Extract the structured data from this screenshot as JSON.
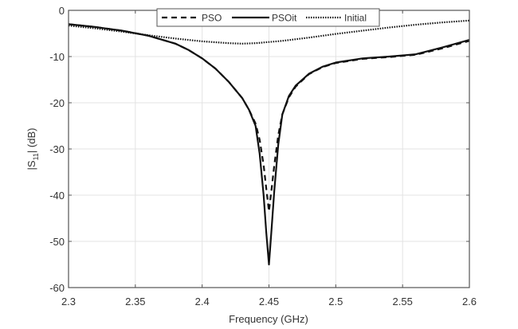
{
  "chart_data": {
    "type": "line",
    "title": "",
    "xlabel": "Frequency (GHz)",
    "ylabel": "|S11| (dB)",
    "ylabel_main": "|S",
    "ylabel_sub": "11",
    "ylabel_tail": "| (dB)",
    "xlim": [
      2.3,
      2.6
    ],
    "ylim": [
      -60,
      0
    ],
    "xticks": [
      2.3,
      2.35,
      2.4,
      2.45,
      2.5,
      2.55,
      2.6
    ],
    "xtick_labels": [
      "2.3",
      "2.35",
      "2.4",
      "2.45",
      "2.5",
      "2.55",
      "2.6"
    ],
    "yticks": [
      0,
      -10,
      -20,
      -30,
      -40,
      -50,
      -60
    ],
    "ytick_labels": [
      "0",
      "-10",
      "-20",
      "-30",
      "-40",
      "-50",
      "-60"
    ],
    "grid": true,
    "legend_position": "top-center",
    "series": [
      {
        "name": "PSO",
        "style": "dashed",
        "x": [
          2.3,
          2.32,
          2.34,
          2.36,
          2.38,
          2.39,
          2.4,
          2.41,
          2.42,
          2.43,
          2.435,
          2.44,
          2.443,
          2.446,
          2.448,
          2.45,
          2.452,
          2.454,
          2.457,
          2.46,
          2.465,
          2.47,
          2.48,
          2.49,
          2.5,
          2.52,
          2.54,
          2.56,
          2.58,
          2.6
        ],
        "values": [
          -3.0,
          -3.6,
          -4.4,
          -5.5,
          -7.2,
          -8.6,
          -10.4,
          -12.6,
          -15.5,
          -19.0,
          -21.5,
          -24.5,
          -28.0,
          -33.5,
          -38.5,
          -43.5,
          -38.5,
          -33.5,
          -27.0,
          -22.5,
          -18.8,
          -16.5,
          -13.8,
          -12.3,
          -11.4,
          -10.5,
          -10.1,
          -9.6,
          -8.2,
          -6.6
        ]
      },
      {
        "name": "PSOit",
        "style": "solid",
        "x": [
          2.3,
          2.32,
          2.34,
          2.36,
          2.38,
          2.39,
          2.4,
          2.41,
          2.42,
          2.43,
          2.435,
          2.44,
          2.443,
          2.446,
          2.448,
          2.45,
          2.452,
          2.454,
          2.457,
          2.46,
          2.465,
          2.47,
          2.48,
          2.49,
          2.5,
          2.52,
          2.54,
          2.56,
          2.58,
          2.6
        ],
        "values": [
          -3.0,
          -3.6,
          -4.4,
          -5.5,
          -7.2,
          -8.6,
          -10.4,
          -12.6,
          -15.5,
          -19.0,
          -21.5,
          -25.0,
          -31.0,
          -40.0,
          -48.0,
          -55.0,
          -47.0,
          -39.0,
          -29.0,
          -22.5,
          -18.5,
          -16.3,
          -13.7,
          -12.2,
          -11.3,
          -10.4,
          -10.0,
          -9.5,
          -8.0,
          -6.4
        ]
      },
      {
        "name": "Initial",
        "style": "dotted",
        "x": [
          2.3,
          2.32,
          2.34,
          2.36,
          2.38,
          2.4,
          2.42,
          2.43,
          2.44,
          2.46,
          2.48,
          2.5,
          2.52,
          2.54,
          2.56,
          2.58,
          2.6
        ],
        "values": [
          -3.3,
          -3.9,
          -4.6,
          -5.4,
          -6.1,
          -6.7,
          -7.1,
          -7.2,
          -7.1,
          -6.6,
          -5.9,
          -5.1,
          -4.4,
          -3.7,
          -3.1,
          -2.6,
          -2.2
        ]
      }
    ]
  }
}
